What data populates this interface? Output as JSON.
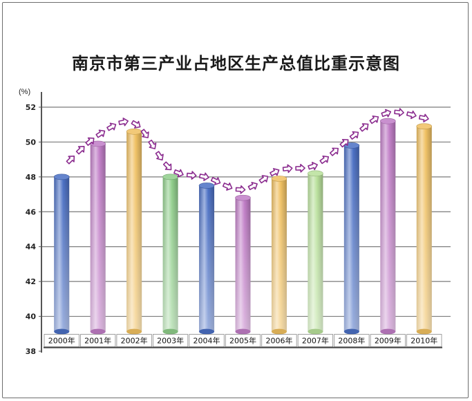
{
  "chart_data": {
    "type": "bar",
    "title": "南京市第三产业占地区生产总值比重示意图",
    "ylabel": "(%)",
    "xlabel": "",
    "ylim": [
      38,
      52
    ],
    "yticks": [
      38,
      40,
      42,
      44,
      46,
      48,
      50,
      52
    ],
    "categories": [
      "2000年",
      "2001年",
      "2002年",
      "2003年",
      "2004年",
      "2005年",
      "2006年",
      "2007年",
      "2008年",
      "2009年",
      "2010年"
    ],
    "values": [
      48.0,
      49.9,
      50.6,
      48.0,
      47.5,
      46.8,
      47.9,
      48.2,
      49.8,
      51.2,
      50.9
    ],
    "colors": [
      "#4a6fc4",
      "#c07cc6",
      "#f0c060",
      "#8fce8a",
      "#4a6fc4",
      "#c07cc6",
      "#f0c060",
      "#b8e09a",
      "#4a6fc4",
      "#c07cc6",
      "#f0c060"
    ],
    "grid": true,
    "trend_arrows": true
  }
}
